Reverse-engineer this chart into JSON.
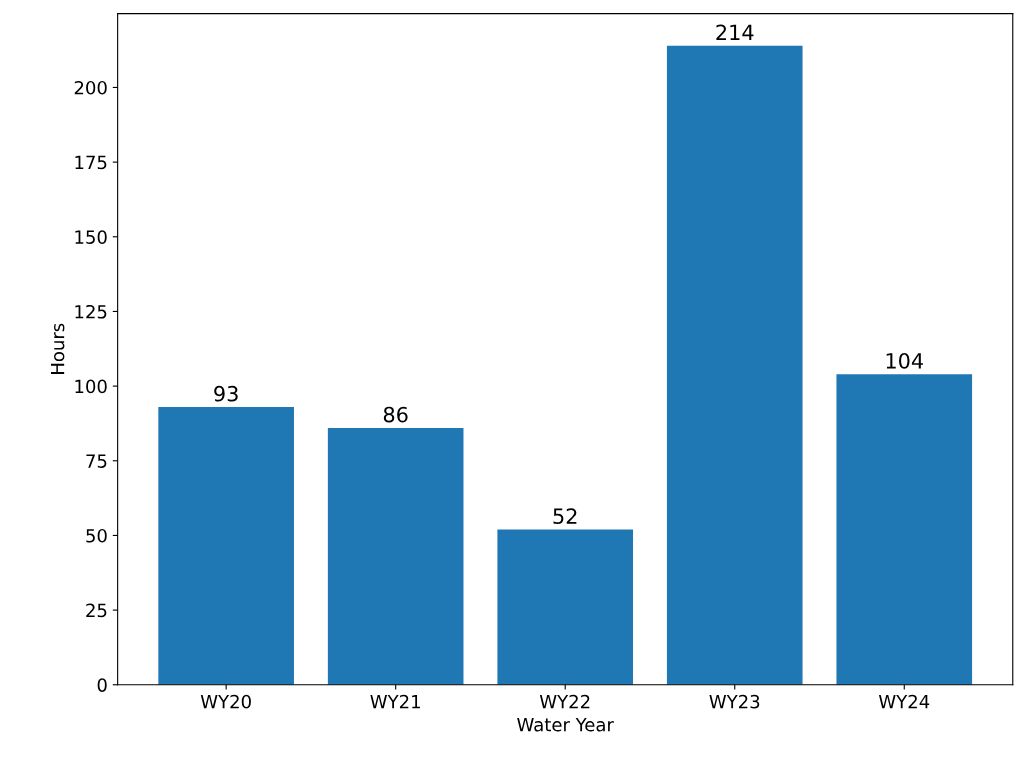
{
  "chart_data": {
    "type": "bar",
    "xlabel": "Water Year",
    "ylabel": "Hours",
    "categories": [
      "WY20",
      "WY21",
      "WY22",
      "WY23",
      "WY24"
    ],
    "values": [
      93,
      86,
      52,
      214,
      104
    ],
    "color": "#1f77b4",
    "ylim": [
      0,
      224.7
    ],
    "yticks": [
      0,
      25,
      50,
      75,
      100,
      125,
      150,
      175,
      200
    ],
    "data_labels": true,
    "grid": false
  }
}
